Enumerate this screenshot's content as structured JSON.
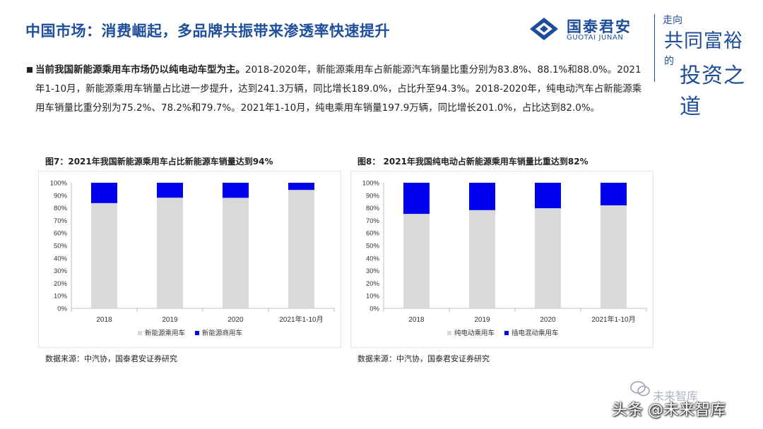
{
  "header": {
    "title": "中国市场：消费崛起，多品牌共振带来渗透率快速提升",
    "logo_cn": "国泰君安",
    "logo_en": "GUOTAI JUNAN",
    "slogan_line1": "走向",
    "slogan_line2": "共同富裕",
    "slogan_line3": "的",
    "slogan_line4": "投资之道"
  },
  "paragraph": {
    "lead": "当前我国新能源乘用车市场仍以纯电动车型为主。",
    "body": "2018-2020年，新能源乘用车占新能源汽车销量比重分别为83.8%、88.1%和88.0%。2021年1-10月，新能源乘用车销量占比进一步提升，达到241.3万辆，同比增长189.0%，占比升至94.3%。2018-2020年，纯电动汽车占新能源乘用车销量比重分别为75.2%、78.2%和79.7%。2021年1-10月，纯电乘用车销量197.9万辆，同比增长201.0%，占比达到82.0%。"
  },
  "colors": {
    "title": "#1f4e9c",
    "series_gray": "#d9d9d9",
    "series_blue": "#0000ee",
    "axis": "#bfbfbf"
  },
  "chart_data": [
    {
      "type": "bar",
      "stacked": true,
      "title": "图7：2021年我国新能源乘用车占比新能源车销量达到94%",
      "source": "数据来源：中汽协，国泰君安证券研究",
      "categories": [
        "2018",
        "2019",
        "2020",
        "2021年1-10月"
      ],
      "series": [
        {
          "name": "新能源乘用车",
          "values": [
            83.8,
            88.1,
            88.0,
            94.3
          ],
          "color": "#d9d9d9"
        },
        {
          "name": "新能源商用车",
          "values": [
            16.2,
            11.9,
            12.0,
            5.7
          ],
          "color": "#0000ee"
        }
      ],
      "ylim": [
        0,
        100
      ],
      "yticks": [
        "0%",
        "10%",
        "20%",
        "30%",
        "40%",
        "50%",
        "60%",
        "70%",
        "80%",
        "90%",
        "100%"
      ],
      "legend": "bottom"
    },
    {
      "type": "bar",
      "stacked": true,
      "title": "图8：  2021年我国纯电动占新能源乘用车销量比重达到82%",
      "source": "数据来源：中汽协，国泰君安证券研究",
      "categories": [
        "2018",
        "2019",
        "2020",
        "2021年1-10月"
      ],
      "series": [
        {
          "name": "纯电动乘用车",
          "values": [
            75.2,
            78.2,
            79.7,
            82.0
          ],
          "color": "#d9d9d9"
        },
        {
          "name": "插电混动乘用车",
          "values": [
            24.8,
            21.8,
            20.3,
            18.0
          ],
          "color": "#0000ee"
        }
      ],
      "ylim": [
        0,
        100
      ],
      "yticks": [
        "0%",
        "10%",
        "20%",
        "30%",
        "40%",
        "50%",
        "60%",
        "70%",
        "80%",
        "90%",
        "100%"
      ],
      "legend": "bottom"
    }
  ],
  "footer": {
    "watermark": "未来智库",
    "text": "头条 @未来智库"
  }
}
